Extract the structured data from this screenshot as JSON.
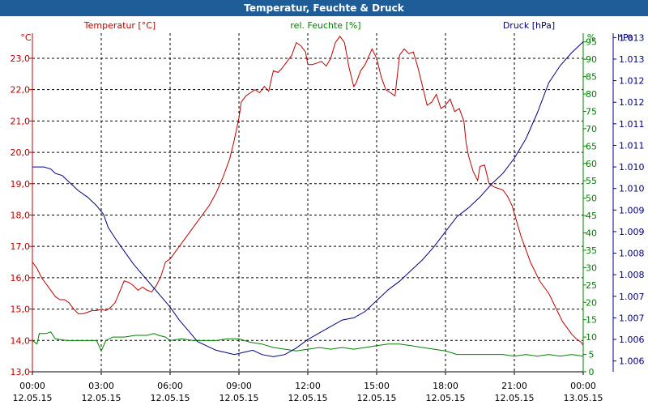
{
  "window": {
    "title": "Temperatur, Feuchte & Druck"
  },
  "chart_data": {
    "type": "line",
    "title": "Temperatur, Feuchte & Druck",
    "x": {
      "start": "00:00 12.05.15",
      "end": "00:00 13.05.15",
      "range_hours": [
        0,
        24
      ],
      "ticks": [
        {
          "h": 0,
          "time": "00:00",
          "date": "12.05.15"
        },
        {
          "h": 3,
          "time": "03:00",
          "date": "12.05.15"
        },
        {
          "h": 6,
          "time": "06:00",
          "date": "12.05.15"
        },
        {
          "h": 9,
          "time": "09:00",
          "date": "12.05.15"
        },
        {
          "h": 12,
          "time": "12:00",
          "date": "12.05.15"
        },
        {
          "h": 15,
          "time": "15:00",
          "date": "12.05.15"
        },
        {
          "h": 18,
          "time": "18:00",
          "date": "12.05.15"
        },
        {
          "h": 21,
          "time": "21:00",
          "date": "12.05.15"
        },
        {
          "h": 24,
          "time": "00:00",
          "date": "13.05.15"
        }
      ]
    },
    "axes": {
      "temperature": {
        "unit": "°C",
        "color": "#c00000",
        "range": [
          13.0,
          23.8
        ],
        "ticks": [
          "13,0",
          "14,0",
          "15,0",
          "16,0",
          "17,0",
          "18,0",
          "19,0",
          "20,0",
          "21,0",
          "22,0",
          "23,0"
        ]
      },
      "humidity": {
        "unit": "%",
        "color": "#008000",
        "range": [
          0,
          97.5
        ],
        "ticks": [
          "0",
          "5",
          "10",
          "15",
          "20",
          "25",
          "30",
          "35",
          "40",
          "45",
          "50",
          "55",
          "60",
          "65",
          "70",
          "75",
          "80",
          "85",
          "90",
          "95"
        ]
      },
      "pressure": {
        "unit": "hPa",
        "color": "#000080",
        "range": [
          1005.5,
          1013.35
        ],
        "ticks": [
          "1.006",
          "1.006",
          "1.007",
          "1.007",
          "1.008",
          "1.008",
          "1.009",
          "1.009",
          "1.010",
          "1.010",
          "1.011",
          "1.011",
          "1.012",
          "1.012",
          "1.013",
          "1.013"
        ]
      }
    },
    "legend": {
      "temperature": "Temperatur [°C]",
      "humidity": "rel. Feuchte [%]",
      "pressure": "Druck [hPa]"
    },
    "grid": true,
    "series": [
      {
        "name": "Temperatur [°C]",
        "axis": "temperature",
        "color": "#c00000",
        "points": [
          [
            0,
            16.5
          ],
          [
            0.2,
            16.3
          ],
          [
            0.4,
            16.0
          ],
          [
            0.6,
            15.8
          ],
          [
            0.8,
            15.6
          ],
          [
            1.0,
            15.4
          ],
          [
            1.2,
            15.3
          ],
          [
            1.4,
            15.3
          ],
          [
            1.6,
            15.2
          ],
          [
            1.8,
            15.0
          ],
          [
            2.0,
            14.85
          ],
          [
            2.2,
            14.85
          ],
          [
            2.4,
            14.9
          ],
          [
            2.6,
            14.95
          ],
          [
            2.8,
            14.95
          ],
          [
            3.0,
            15.0
          ],
          [
            3.2,
            14.95
          ],
          [
            3.4,
            15.05
          ],
          [
            3.6,
            15.2
          ],
          [
            3.8,
            15.55
          ],
          [
            4.0,
            15.9
          ],
          [
            4.2,
            15.85
          ],
          [
            4.4,
            15.75
          ],
          [
            4.6,
            15.6
          ],
          [
            4.8,
            15.7
          ],
          [
            5.0,
            15.6
          ],
          [
            5.2,
            15.55
          ],
          [
            5.4,
            15.75
          ],
          [
            5.6,
            16.05
          ],
          [
            5.8,
            16.5
          ],
          [
            6.0,
            16.6
          ],
          [
            6.2,
            16.8
          ],
          [
            6.5,
            17.1
          ],
          [
            6.8,
            17.4
          ],
          [
            7.1,
            17.7
          ],
          [
            7.4,
            18.0
          ],
          [
            7.7,
            18.3
          ],
          [
            8.0,
            18.7
          ],
          [
            8.3,
            19.2
          ],
          [
            8.6,
            19.8
          ],
          [
            8.8,
            20.4
          ],
          [
            9.0,
            21.1
          ],
          [
            9.1,
            21.6
          ],
          [
            9.3,
            21.8
          ],
          [
            9.5,
            21.9
          ],
          [
            9.7,
            22.0
          ],
          [
            9.9,
            21.9
          ],
          [
            10.1,
            22.1
          ],
          [
            10.3,
            21.95
          ],
          [
            10.4,
            22.3
          ],
          [
            10.5,
            22.6
          ],
          [
            10.7,
            22.55
          ],
          [
            10.9,
            22.7
          ],
          [
            11.1,
            22.9
          ],
          [
            11.3,
            23.1
          ],
          [
            11.5,
            23.5
          ],
          [
            11.7,
            23.4
          ],
          [
            11.9,
            23.2
          ],
          [
            12.0,
            22.8
          ],
          [
            12.2,
            22.8
          ],
          [
            12.4,
            22.85
          ],
          [
            12.6,
            22.9
          ],
          [
            12.8,
            22.75
          ],
          [
            13.0,
            23.0
          ],
          [
            13.2,
            23.5
          ],
          [
            13.4,
            23.7
          ],
          [
            13.6,
            23.5
          ],
          [
            13.8,
            22.7
          ],
          [
            14.0,
            22.1
          ],
          [
            14.1,
            22.2
          ],
          [
            14.3,
            22.6
          ],
          [
            14.5,
            22.8
          ],
          [
            14.8,
            23.3
          ],
          [
            15.0,
            23.0
          ],
          [
            15.2,
            22.4
          ],
          [
            15.4,
            22.0
          ],
          [
            15.6,
            21.9
          ],
          [
            15.8,
            21.8
          ],
          [
            16.0,
            23.1
          ],
          [
            16.2,
            23.3
          ],
          [
            16.4,
            23.15
          ],
          [
            16.6,
            23.2
          ],
          [
            16.8,
            22.7
          ],
          [
            17.0,
            22.1
          ],
          [
            17.2,
            21.5
          ],
          [
            17.4,
            21.6
          ],
          [
            17.6,
            21.85
          ],
          [
            17.8,
            21.4
          ],
          [
            18.0,
            21.5
          ],
          [
            18.2,
            21.7
          ],
          [
            18.4,
            21.3
          ],
          [
            18.6,
            21.4
          ],
          [
            18.8,
            21.0
          ],
          [
            18.9,
            20.3
          ],
          [
            19.0,
            19.9
          ],
          [
            19.2,
            19.4
          ],
          [
            19.4,
            19.1
          ],
          [
            19.5,
            19.55
          ],
          [
            19.7,
            19.6
          ],
          [
            19.9,
            19.0
          ],
          [
            20.1,
            18.9
          ],
          [
            20.3,
            18.85
          ],
          [
            20.5,
            18.8
          ],
          [
            20.7,
            18.6
          ],
          [
            20.9,
            18.3
          ],
          [
            21.1,
            17.8
          ],
          [
            21.3,
            17.3
          ],
          [
            21.5,
            16.9
          ],
          [
            21.7,
            16.5
          ],
          [
            21.9,
            16.2
          ],
          [
            22.1,
            15.9
          ],
          [
            22.3,
            15.7
          ],
          [
            22.5,
            15.5
          ],
          [
            22.7,
            15.2
          ],
          [
            22.9,
            14.9
          ],
          [
            23.1,
            14.6
          ],
          [
            23.3,
            14.4
          ],
          [
            23.5,
            14.2
          ],
          [
            23.7,
            14.05
          ],
          [
            23.9,
            13.95
          ],
          [
            24.0,
            13.85
          ]
        ]
      },
      {
        "name": "rel. Feuchte [%]",
        "axis": "humidity",
        "color": "#008000",
        "points": [
          [
            0,
            9
          ],
          [
            0.2,
            8
          ],
          [
            0.3,
            11
          ],
          [
            0.6,
            11
          ],
          [
            0.8,
            11.5
          ],
          [
            1.0,
            9.5
          ],
          [
            1.5,
            9
          ],
          [
            2.0,
            9
          ],
          [
            2.5,
            9
          ],
          [
            2.8,
            9
          ],
          [
            3.0,
            6
          ],
          [
            3.2,
            9
          ],
          [
            3.5,
            10
          ],
          [
            4.0,
            10
          ],
          [
            4.5,
            10.5
          ],
          [
            5.0,
            10.5
          ],
          [
            5.3,
            11
          ],
          [
            5.5,
            10.5
          ],
          [
            5.8,
            10
          ],
          [
            6.0,
            9
          ],
          [
            6.5,
            9.5
          ],
          [
            7.0,
            9
          ],
          [
            7.5,
            9
          ],
          [
            8.0,
            9
          ],
          [
            8.5,
            9.5
          ],
          [
            9.0,
            9.5
          ],
          [
            9.5,
            8.5
          ],
          [
            10.0,
            8
          ],
          [
            10.5,
            7
          ],
          [
            11.0,
            6.5
          ],
          [
            11.5,
            6
          ],
          [
            12.0,
            6.5
          ],
          [
            12.5,
            7
          ],
          [
            13.0,
            6.5
          ],
          [
            13.5,
            7
          ],
          [
            14.0,
            6.5
          ],
          [
            14.5,
            7
          ],
          [
            15.0,
            7.5
          ],
          [
            15.5,
            8
          ],
          [
            16.0,
            8
          ],
          [
            16.5,
            7.5
          ],
          [
            17.0,
            7
          ],
          [
            17.5,
            6.5
          ],
          [
            18.0,
            6
          ],
          [
            18.5,
            5
          ],
          [
            19.0,
            5
          ],
          [
            19.5,
            5
          ],
          [
            20.0,
            5
          ],
          [
            20.5,
            5
          ],
          [
            21.0,
            4.5
          ],
          [
            21.5,
            5
          ],
          [
            22.0,
            4.5
          ],
          [
            22.5,
            5
          ],
          [
            23.0,
            4.5
          ],
          [
            23.5,
            5
          ],
          [
            24.0,
            4.5
          ]
        ]
      },
      {
        "name": "Druck [hPa]",
        "axis": "pressure",
        "color": "#000080",
        "points": [
          [
            0,
            1010.25
          ],
          [
            0.5,
            1010.25
          ],
          [
            0.8,
            1010.2
          ],
          [
            1.0,
            1010.1
          ],
          [
            1.3,
            1010.05
          ],
          [
            1.6,
            1009.9
          ],
          [
            2.0,
            1009.7
          ],
          [
            2.4,
            1009.55
          ],
          [
            2.8,
            1009.35
          ],
          [
            3.1,
            1009.15
          ],
          [
            3.3,
            1008.85
          ],
          [
            3.6,
            1008.6
          ],
          [
            4.0,
            1008.3
          ],
          [
            4.4,
            1008.0
          ],
          [
            4.8,
            1007.75
          ],
          [
            5.2,
            1007.5
          ],
          [
            5.6,
            1007.25
          ],
          [
            6.0,
            1007.0
          ],
          [
            6.4,
            1006.7
          ],
          [
            6.8,
            1006.45
          ],
          [
            7.2,
            1006.2
          ],
          [
            7.6,
            1006.1
          ],
          [
            8.0,
            1006.0
          ],
          [
            8.4,
            1005.95
          ],
          [
            8.8,
            1005.9
          ],
          [
            9.2,
            1005.95
          ],
          [
            9.6,
            1006.0
          ],
          [
            10.0,
            1005.9
          ],
          [
            10.5,
            1005.85
          ],
          [
            11.0,
            1005.9
          ],
          [
            11.5,
            1006.05
          ],
          [
            12.0,
            1006.25
          ],
          [
            12.5,
            1006.4
          ],
          [
            13.0,
            1006.55
          ],
          [
            13.5,
            1006.7
          ],
          [
            14.0,
            1006.75
          ],
          [
            14.5,
            1006.9
          ],
          [
            15.0,
            1007.15
          ],
          [
            15.5,
            1007.4
          ],
          [
            16.0,
            1007.6
          ],
          [
            16.5,
            1007.85
          ],
          [
            17.0,
            1008.1
          ],
          [
            17.5,
            1008.4
          ],
          [
            18.0,
            1008.75
          ],
          [
            18.5,
            1009.1
          ],
          [
            19.0,
            1009.3
          ],
          [
            19.5,
            1009.55
          ],
          [
            20.0,
            1009.85
          ],
          [
            20.5,
            1010.1
          ],
          [
            21.0,
            1010.45
          ],
          [
            21.5,
            1010.9
          ],
          [
            22.0,
            1011.5
          ],
          [
            22.5,
            1012.2
          ],
          [
            23.0,
            1012.6
          ],
          [
            23.5,
            1012.9
          ],
          [
            24.0,
            1013.15
          ]
        ]
      }
    ]
  }
}
